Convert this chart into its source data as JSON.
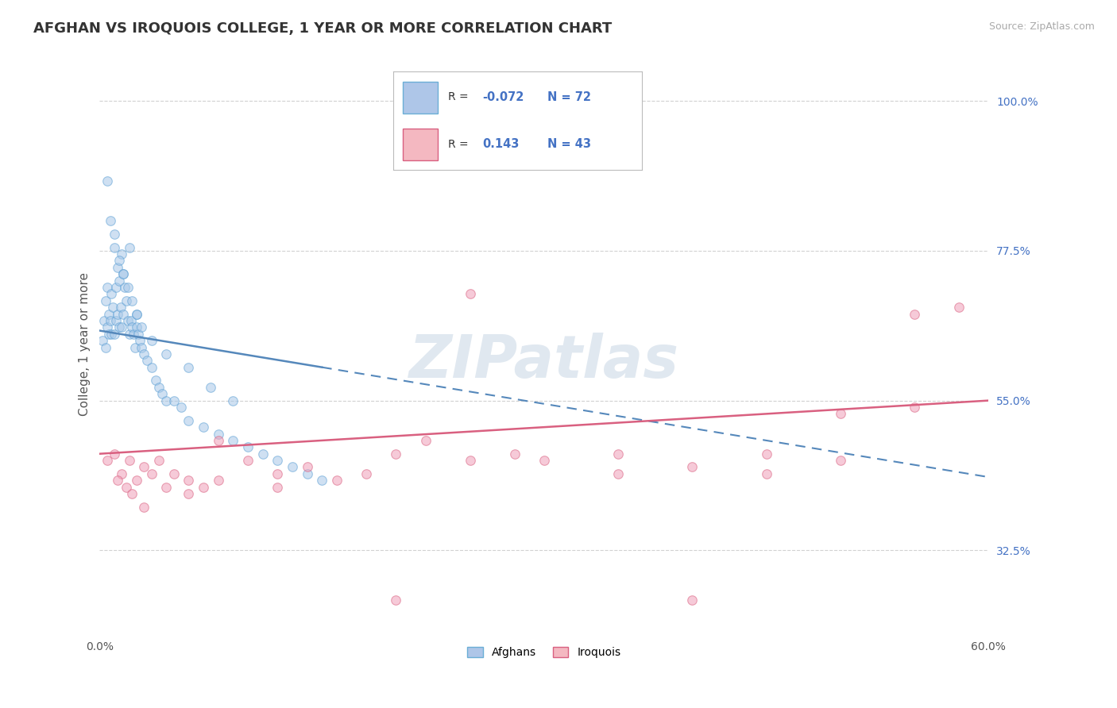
{
  "title": "AFGHAN VS IROQUOIS COLLEGE, 1 YEAR OR MORE CORRELATION CHART",
  "source_text": "Source: ZipAtlas.com",
  "ylabel": "College, 1 year or more",
  "xlim": [
    0.0,
    60.0
  ],
  "ylim": [
    20.0,
    107.0
  ],
  "yticks": [
    32.5,
    55.0,
    77.5,
    100.0
  ],
  "xtick_labels": [
    "0.0%",
    "",
    "",
    "",
    "",
    "",
    "60.0%"
  ],
  "ytick_labels": [
    "32.5%",
    "55.0%",
    "77.5%",
    "100.0%"
  ],
  "afghan_R": "-0.072",
  "afghan_N": "72",
  "iroquois_R": "0.143",
  "iroquois_N": "43",
  "afghan_scatter_x": [
    0.2,
    0.3,
    0.4,
    0.4,
    0.5,
    0.5,
    0.6,
    0.6,
    0.7,
    0.8,
    0.8,
    0.9,
    1.0,
    1.0,
    1.1,
    1.1,
    1.2,
    1.2,
    1.3,
    1.3,
    1.4,
    1.5,
    1.5,
    1.6,
    1.6,
    1.7,
    1.8,
    1.9,
    2.0,
    2.0,
    2.1,
    2.2,
    2.3,
    2.4,
    2.5,
    2.5,
    2.6,
    2.7,
    2.8,
    3.0,
    3.2,
    3.5,
    3.8,
    4.0,
    4.2,
    4.5,
    5.0,
    5.5,
    6.0,
    7.0,
    8.0,
    9.0,
    10.0,
    11.0,
    12.0,
    13.0,
    14.0,
    15.0,
    0.5,
    0.7,
    1.0,
    1.3,
    1.6,
    1.9,
    2.2,
    2.5,
    2.8,
    3.5,
    4.5,
    6.0,
    7.5,
    9.0
  ],
  "afghan_scatter_y": [
    64.0,
    67.0,
    63.0,
    70.0,
    66.0,
    72.0,
    65.0,
    68.0,
    67.0,
    71.0,
    65.0,
    69.0,
    80.0,
    65.0,
    72.0,
    67.0,
    75.0,
    68.0,
    73.0,
    66.0,
    69.0,
    77.0,
    66.0,
    74.0,
    68.0,
    72.0,
    70.0,
    67.0,
    78.0,
    65.0,
    67.0,
    66.0,
    65.0,
    63.0,
    66.0,
    68.0,
    65.0,
    64.0,
    63.0,
    62.0,
    61.0,
    60.0,
    58.0,
    57.0,
    56.0,
    55.0,
    55.0,
    54.0,
    52.0,
    51.0,
    50.0,
    49.0,
    48.0,
    47.0,
    46.0,
    45.0,
    44.0,
    43.0,
    88.0,
    82.0,
    78.0,
    76.0,
    74.0,
    72.0,
    70.0,
    68.0,
    66.0,
    64.0,
    62.0,
    60.0,
    57.0,
    55.0
  ],
  "iroquois_scatter_x": [
    0.5,
    1.0,
    1.5,
    2.0,
    2.5,
    3.0,
    3.5,
    4.0,
    5.0,
    6.0,
    7.0,
    8.0,
    10.0,
    12.0,
    14.0,
    16.0,
    20.0,
    22.0,
    25.0,
    28.0,
    30.0,
    35.0,
    40.0,
    45.0,
    50.0,
    55.0,
    58.0,
    1.2,
    1.8,
    2.2,
    3.0,
    4.5,
    6.0,
    8.0,
    12.0,
    18.0,
    25.0,
    35.0,
    45.0,
    50.0,
    20.0,
    40.0,
    55.0
  ],
  "iroquois_scatter_y": [
    46.0,
    47.0,
    44.0,
    46.0,
    43.0,
    45.0,
    44.0,
    46.0,
    44.0,
    43.0,
    42.0,
    49.0,
    46.0,
    44.0,
    45.0,
    43.0,
    47.0,
    49.0,
    71.0,
    47.0,
    46.0,
    47.0,
    45.0,
    47.0,
    53.0,
    54.0,
    69.0,
    43.0,
    42.0,
    41.0,
    39.0,
    42.0,
    41.0,
    43.0,
    42.0,
    44.0,
    46.0,
    44.0,
    44.0,
    46.0,
    25.0,
    25.0,
    68.0
  ],
  "afghan_trend_x0": 0.0,
  "afghan_trend_x1": 60.0,
  "afghan_trend_y0": 65.5,
  "afghan_trend_y1": 43.5,
  "afghan_solid_x1": 15.0,
  "iroquois_trend_x0": 0.0,
  "iroquois_trend_x1": 60.0,
  "iroquois_trend_y0": 47.0,
  "iroquois_trend_y1": 55.0,
  "dot_size": 70,
  "dot_alpha": 0.55,
  "afghan_dot_color": "#a8c8e8",
  "afghan_dot_edge": "#5b9fd4",
  "iroquois_dot_color": "#f0a0b8",
  "iroquois_dot_edge": "#d96080",
  "afghan_line_color": "#5588bb",
  "iroquois_line_color": "#d96080",
  "grid_color": "#cccccc",
  "background_color": "#ffffff",
  "watermark_text": "ZIPatlas",
  "watermark_color": "#e0e8f0",
  "watermark_fontsize": 54,
  "title_fontsize": 13,
  "axis_label_fontsize": 11,
  "tick_fontsize": 10,
  "source_fontsize": 9,
  "legend_box_color": "#aec6e8",
  "legend_box_edge": "#6baed6",
  "legend_box_color2": "#f4b8c1",
  "legend_box_edge2": "#d96080",
  "legend_R_color": "#4472c4",
  "legend_label_color": "#333333"
}
